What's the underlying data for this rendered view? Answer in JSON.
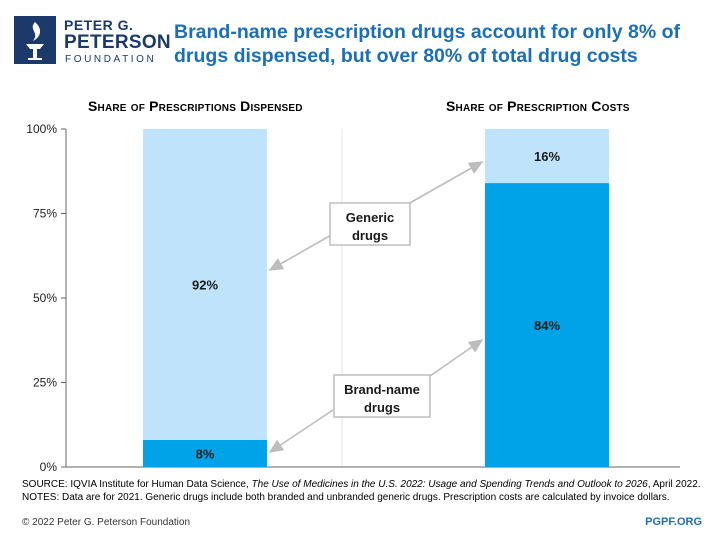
{
  "logo": {
    "line1": "PETER G.",
    "line2": "PETERSON",
    "line3": "FOUNDATION"
  },
  "title": "Brand-name prescription drugs account for only 8% of drugs dispensed, but over 80% of total drug costs",
  "colors": {
    "title": "#1a6fb5",
    "generic": "#bfe3fb",
    "brand": "#00a2e8",
    "arrow": "#bdbdbd"
  },
  "chart_data": {
    "type": "bar",
    "stacked": true,
    "categories": [
      "Share of Prescriptions Dispensed",
      "Share of Prescription Costs"
    ],
    "series": [
      {
        "name": "Brand-name drugs",
        "values": [
          8,
          84
        ],
        "labels": [
          "8%",
          "84%"
        ]
      },
      {
        "name": "Generic drugs",
        "values": [
          92,
          16
        ],
        "labels": [
          "92%",
          "16%"
        ]
      }
    ],
    "ylim": [
      0,
      100
    ],
    "yticks": [
      "0%",
      "25%",
      "50%",
      "75%",
      "100%"
    ],
    "ytick_values": [
      0,
      25,
      50,
      75,
      100
    ],
    "annotations": {
      "generic": [
        "Generic",
        "drugs"
      ],
      "brand": [
        "Brand-name",
        "drugs"
      ]
    }
  },
  "source": {
    "prefix": "SOURCE: IQVIA Institute for Human Data Science, ",
    "italic": "The Use of Medicines in the U.S. 2022: Usage and Spending Trends and Outlook to 2026",
    "suffix": ", April 2022."
  },
  "notes": "NOTES: Data are for 2021. Generic drugs include both branded and unbranded generic drugs. Prescription costs are calculated by invoice dollars.",
  "copyright": "© 2022 Peter G. Peterson Foundation",
  "site": "PGPF.ORG"
}
